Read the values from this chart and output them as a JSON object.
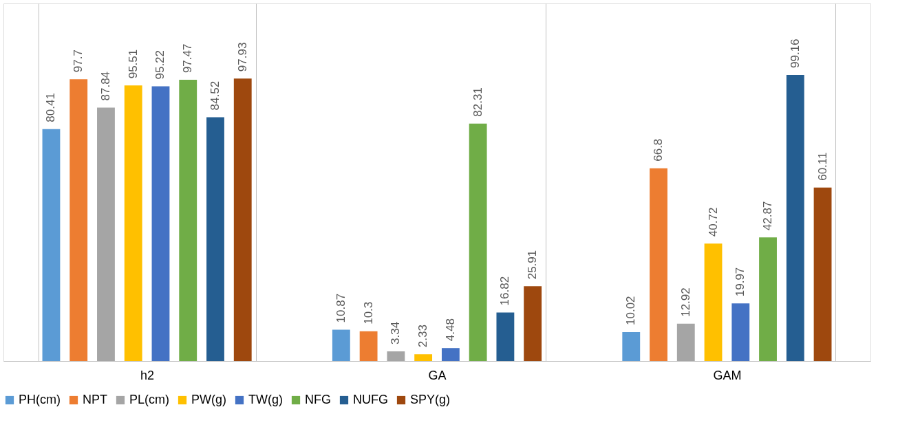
{
  "chart_data": {
    "type": "bar",
    "categories": [
      "h2",
      "GA",
      "GAM"
    ],
    "series": [
      {
        "name": "PH(cm)",
        "color": "#5b9bd5",
        "values": [
          80.41,
          10.87,
          10.02
        ]
      },
      {
        "name": "NPT",
        "color": "#ed7d31",
        "values": [
          97.7,
          10.3,
          66.8
        ]
      },
      {
        "name": "PL(cm)",
        "color": "#a5a5a5",
        "values": [
          87.84,
          3.34,
          12.92
        ]
      },
      {
        "name": "PW(g)",
        "color": "#ffc000",
        "values": [
          95.51,
          2.33,
          40.72
        ]
      },
      {
        "name": "TW(g)",
        "color": "#4472c4",
        "values": [
          95.22,
          4.48,
          19.97
        ]
      },
      {
        "name": "NFG",
        "color": "#70ad47",
        "values": [
          97.47,
          82.31,
          42.87
        ]
      },
      {
        "name": "NUFG",
        "color": "#255e91",
        "values": [
          84.52,
          16.82,
          99.16
        ]
      },
      {
        "name": "SPY(g)",
        "color": "#9e480e",
        "values": [
          97.93,
          25.91,
          60.11
        ]
      }
    ],
    "data_labels": true,
    "grid": "x",
    "legend": "bottom",
    "tick_labels": "x"
  }
}
